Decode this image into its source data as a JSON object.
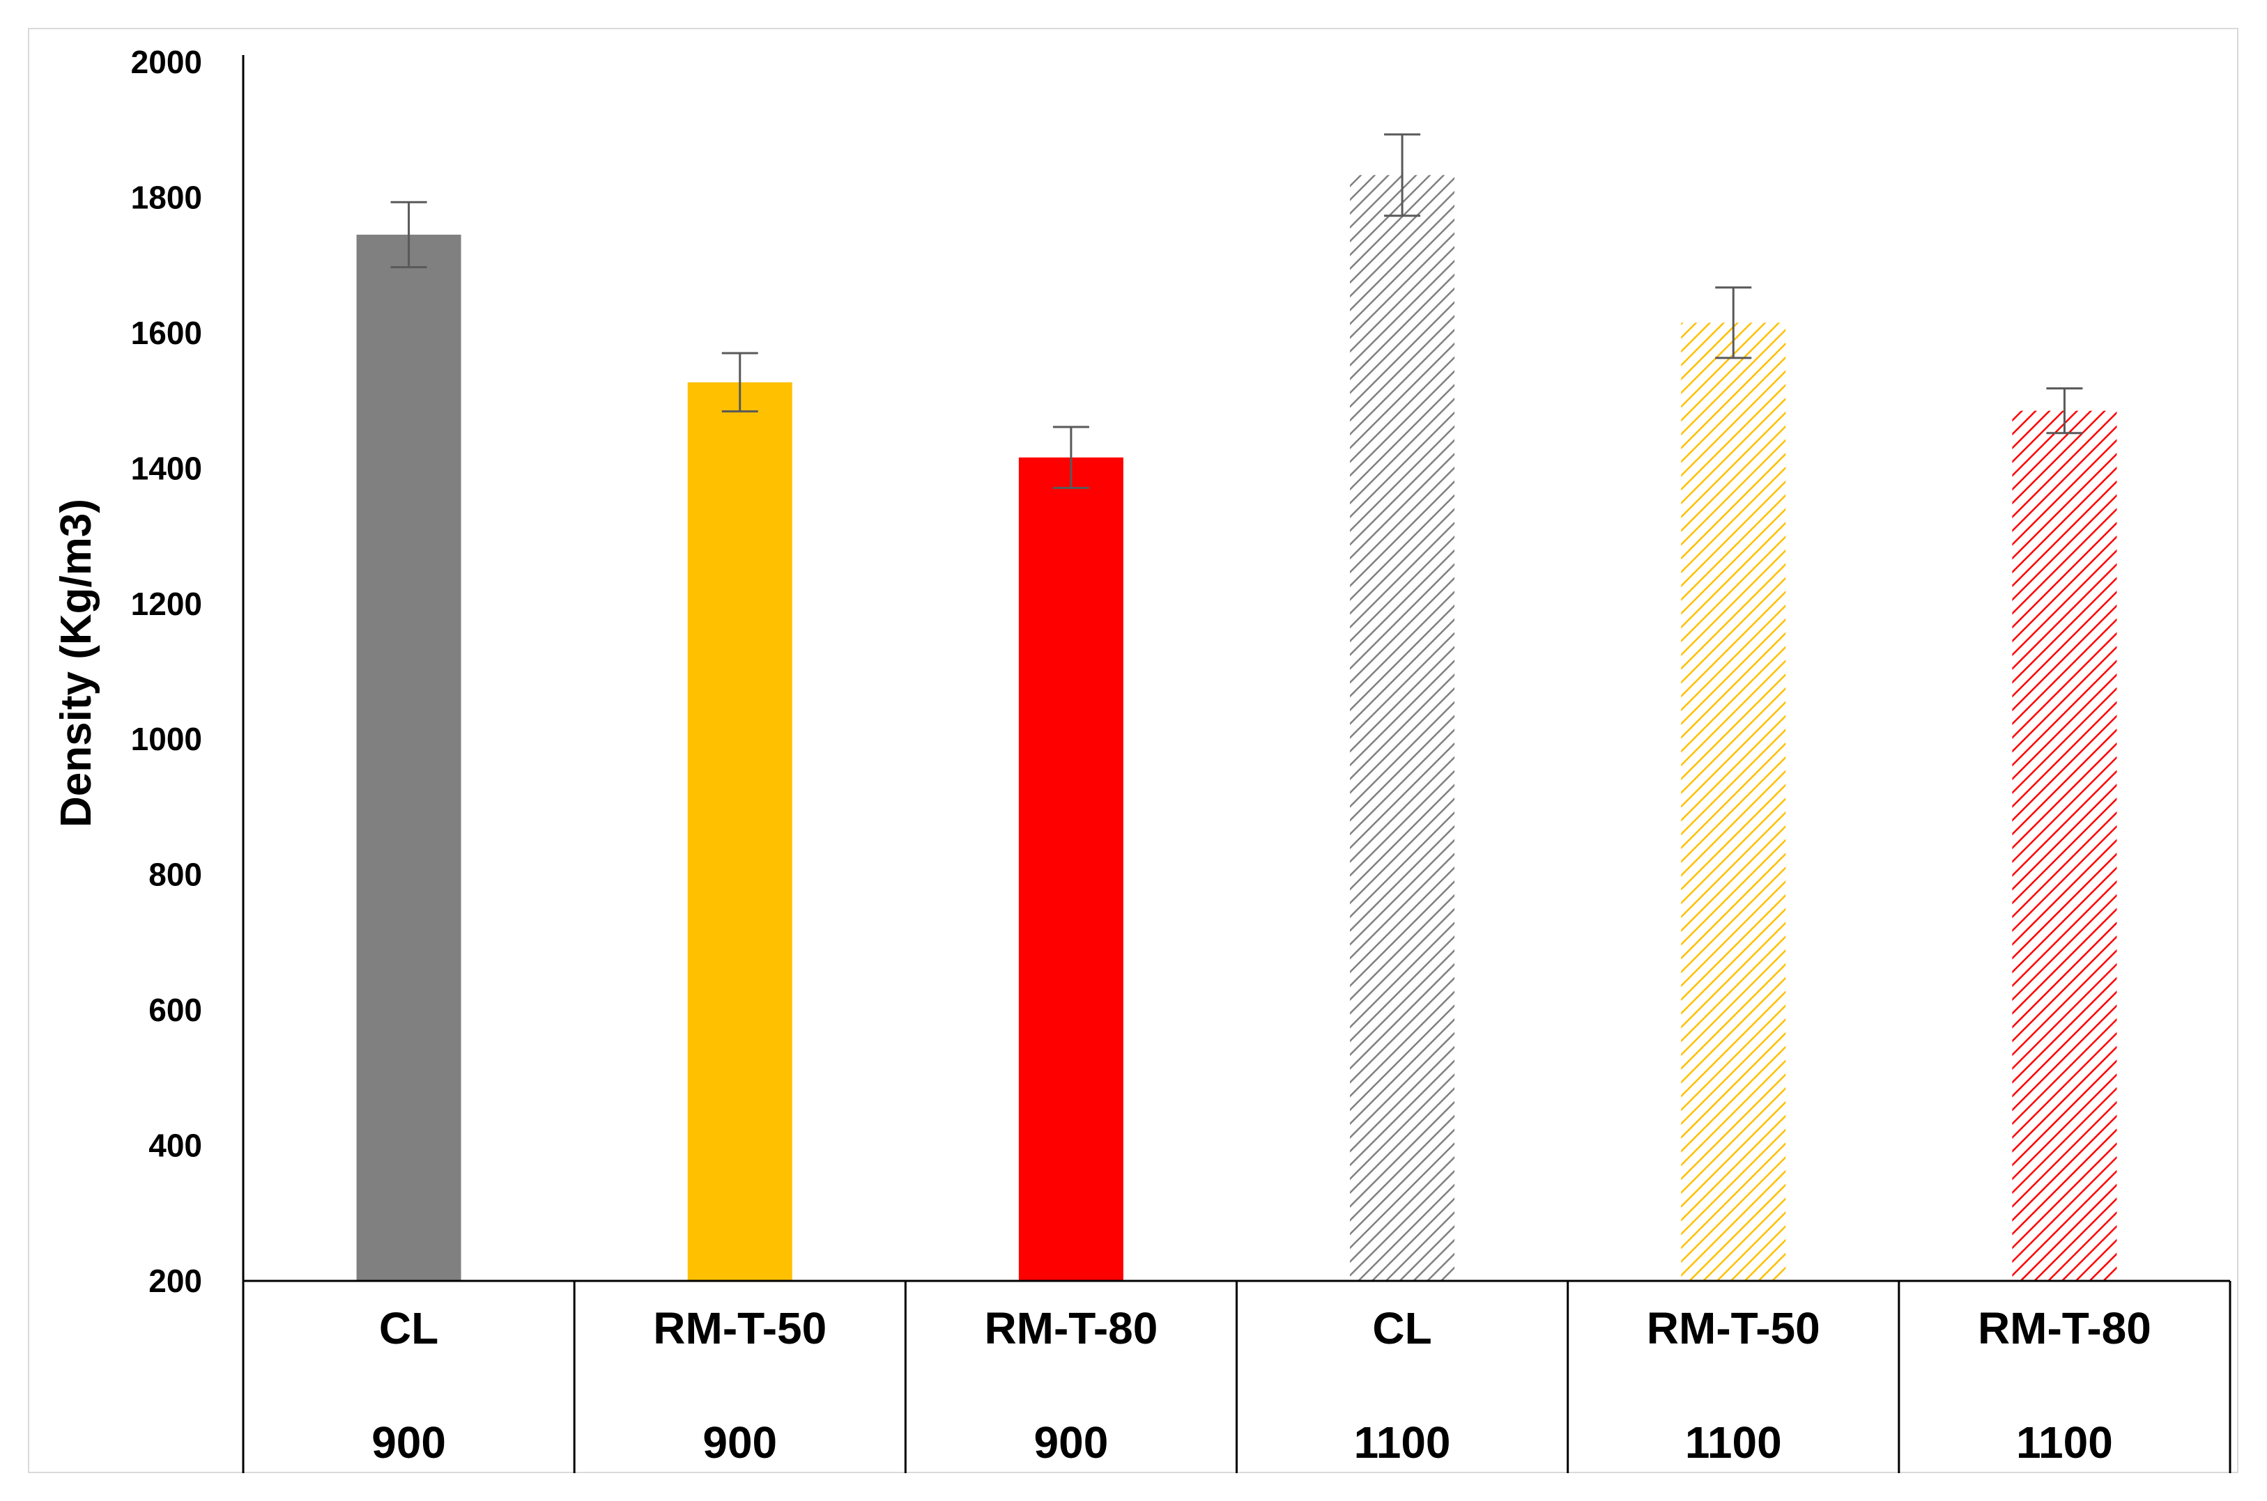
{
  "chart_data": {
    "type": "bar",
    "title": "",
    "xlabel": "",
    "ylabel": "Density (Kg/m3)",
    "ylim": [
      200,
      2000
    ],
    "yticks": [
      "200",
      "400",
      "600",
      "800",
      "1000",
      "1200",
      "1400",
      "1600",
      "1800",
      "2000"
    ],
    "grid": false,
    "legend": "none",
    "categories": [
      "CL",
      "RM-T-50",
      "RM-T-80",
      "CL",
      "RM-T-50",
      "RM-T-80"
    ],
    "groups": [
      "900",
      "900",
      "900",
      "1100",
      "1100",
      "1100"
    ],
    "values": [
      1745,
      1527,
      1416,
      1833,
      1615,
      1485
    ],
    "errors": [
      48,
      43,
      45,
      60,
      52,
      33
    ],
    "fills": [
      "solid",
      "solid",
      "solid",
      "hatched",
      "hatched",
      "hatched"
    ],
    "colors": [
      "#808080",
      "#ffc000",
      "#ff0000",
      "#808080",
      "#ffc000",
      "#ff0000"
    ],
    "error_bar_color": "#595959",
    "axis_color": "#000000"
  }
}
